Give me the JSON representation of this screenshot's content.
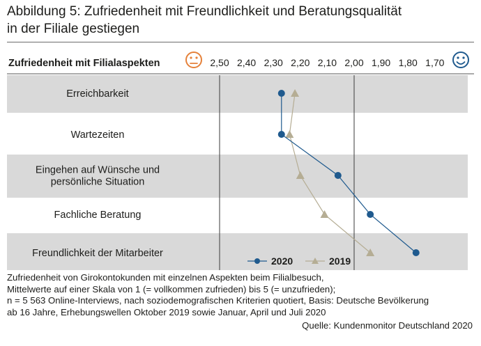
{
  "header": {
    "title_line1": "Abbildung 5: Zufriedenheit mit Freundlichkeit und Beratungsqualität",
    "title_line2": "in der Filiale gestiegen"
  },
  "chart_data": {
    "type": "line",
    "axis_title": "Zufriedenheit mit Filialaspekten",
    "x_scale": "reversed",
    "x_axis_position": "top",
    "xlim": [
      2.5,
      1.65
    ],
    "x_ticks": [
      "2,50",
      "2,40",
      "2,30",
      "2,20",
      "2,10",
      "2,00",
      "1,90",
      "1,80",
      "1,70"
    ],
    "x_tick_values": [
      2.5,
      2.4,
      2.3,
      2.2,
      2.1,
      2.0,
      1.9,
      1.8,
      1.7
    ],
    "reference_lines": [
      2.5,
      2.0
    ],
    "left_icon": "unhappy-face-icon",
    "right_icon": "happy-face-icon",
    "categories": [
      "Erreichbarkeit",
      "Wartezeiten",
      "Eingehen auf Wünsche und persönliche Situation",
      "Fachliche Beratung",
      "Freundlichkeit der Mitarbeiter"
    ],
    "category_lines": [
      [
        "Erreichbarkeit"
      ],
      [
        "Wartezeiten"
      ],
      [
        "Eingehen auf Wünsche und",
        "persönliche Situation"
      ],
      [
        "Fachliche Beratung"
      ],
      [
        "Freundlichkeit der Mitarbeiter"
      ]
    ],
    "series": [
      {
        "name": "2020",
        "marker": "circle",
        "color": "#1f5a8e",
        "values": [
          2.27,
          2.27,
          2.06,
          1.94,
          1.77
        ]
      },
      {
        "name": "2019",
        "marker": "triangle",
        "color": "#b5ad94",
        "values": [
          2.22,
          2.24,
          2.2,
          2.11,
          1.94
        ]
      }
    ],
    "legend_position": "bottom-center",
    "band_color": "#d9d9d9",
    "icon_left_color": "#e5813a",
    "icon_right_color": "#1f5a8e"
  },
  "notes": {
    "line1": "Zufriedenheit von Girokontokunden mit einzelnen Aspekten beim Filialbesuch,",
    "line2": "Mittelwerte auf einer Skala von 1 (= vollkommen zufrieden) bis 5 (= unzufrieden);",
    "line3": "n = 5 563 Online-Interviews, nach soziodemografischen Kriterien quotiert, Basis: Deutsche Bevölkerung",
    "line4": "ab 16 Jahre, Erhebungswellen Oktober 2019 sowie Januar, April und Juli 2020",
    "source": "Quelle: Kundenmonitor Deutschland 2020"
  }
}
